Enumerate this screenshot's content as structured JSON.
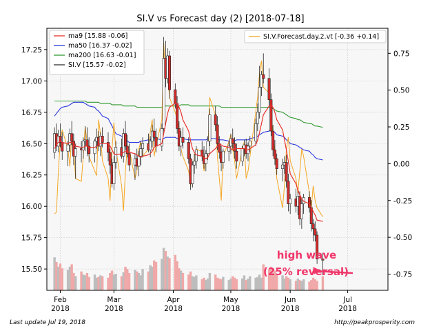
{
  "chart_data": {
    "type": "candlestick",
    "title": "SI.V vs Forecast day (2)  [2018-07-18]",
    "left_axis": {
      "ylim": [
        15.33,
        17.42
      ],
      "ticks": [
        "15.50",
        "15.75",
        "16.00",
        "16.25",
        "16.50",
        "16.75",
        "17.00",
        "17.25"
      ]
    },
    "right_axis": {
      "ylim": [
        -0.86,
        0.92
      ],
      "ticks": [
        "-0.75",
        "-0.50",
        "-0.25",
        "0.00",
        "0.25",
        "0.50",
        "0.75"
      ]
    },
    "x_axis": {
      "ticks": [
        {
          "line1": "Feb",
          "line2": "2018",
          "date": "2018-02-01"
        },
        {
          "line1": "Mar",
          "line2": "2018",
          "date": "2018-03-01"
        },
        {
          "line1": "Apr",
          "line2": "2018",
          "date": "2018-04-01"
        },
        {
          "line1": "May",
          "line2": "2018",
          "date": "2018-05-01"
        },
        {
          "line1": "Jun",
          "line2": "2018",
          "date": "2018-06-01"
        },
        {
          "line1": "Jul",
          "line2": "2018",
          "date": "2018-07-01"
        }
      ]
    },
    "grid": true,
    "legend_left": {
      "placement": "top-left",
      "entries": [
        {
          "label": "ma9 [15.88 -0.06]",
          "color": "#e8312b"
        },
        {
          "label": "ma50 [16.37 -0.02]",
          "color": "#2a38e0"
        },
        {
          "label": "ma200 [16.63 -0.01]",
          "color": "#2f9a2f"
        },
        {
          "label": "SI.V [15.57 -0.02]",
          "color": "#303030"
        }
      ]
    },
    "legend_right": {
      "placement": "top-right",
      "entries": [
        {
          "label": "SI.V.Forecast.day.2.vt [-0.36 +0.14]",
          "color": "#f5a623"
        }
      ]
    },
    "annotation": {
      "line1": "high wave",
      "line2": "(25% reversal)",
      "color": "#f0386b"
    },
    "series": {
      "candles": [
        [
          16.43,
          16.63,
          16.38,
          16.58
        ],
        [
          16.58,
          16.66,
          16.44,
          16.48
        ],
        [
          16.48,
          16.61,
          16.43,
          16.56
        ],
        [
          16.56,
          16.66,
          16.47,
          16.51
        ],
        [
          16.51,
          16.59,
          16.37,
          16.44
        ],
        [
          16.44,
          16.52,
          16.32,
          16.49
        ],
        [
          16.49,
          16.62,
          16.43,
          16.58
        ],
        [
          16.58,
          16.68,
          16.49,
          16.52
        ],
        [
          16.52,
          16.58,
          16.33,
          16.4
        ],
        [
          16.4,
          16.5,
          16.22,
          16.46
        ],
        [
          16.46,
          16.52,
          16.35,
          16.45
        ],
        [
          16.45,
          16.55,
          16.38,
          16.52
        ],
        [
          16.52,
          16.64,
          16.44,
          16.53
        ],
        [
          16.53,
          16.63,
          16.4,
          16.48
        ],
        [
          16.48,
          16.55,
          16.35,
          16.42
        ],
        [
          16.42,
          16.54,
          16.35,
          16.52
        ],
        [
          16.52,
          16.62,
          16.46,
          16.55
        ],
        [
          16.55,
          16.6,
          16.44,
          16.48
        ],
        [
          16.48,
          16.59,
          16.4,
          16.56
        ],
        [
          16.56,
          16.63,
          16.47,
          16.51
        ],
        [
          16.51,
          16.59,
          16.36,
          16.43
        ],
        [
          16.43,
          16.46,
          16.26,
          16.33
        ],
        [
          16.33,
          16.38,
          16.15,
          16.18
        ],
        [
          16.18,
          16.4,
          16.13,
          16.35
        ],
        [
          16.35,
          16.52,
          16.3,
          16.47
        ],
        [
          16.47,
          16.54,
          16.38,
          16.4
        ],
        [
          16.4,
          16.62,
          16.35,
          16.58
        ],
        [
          16.58,
          16.68,
          16.45,
          16.48
        ],
        [
          16.48,
          16.57,
          16.39,
          16.42
        ],
        [
          16.42,
          16.5,
          16.28,
          16.33
        ],
        [
          16.33,
          16.42,
          16.21,
          16.38
        ],
        [
          16.38,
          16.46,
          16.29,
          16.32
        ],
        [
          16.32,
          16.44,
          16.24,
          16.4
        ],
        [
          16.4,
          16.52,
          16.33,
          16.46
        ],
        [
          16.46,
          16.55,
          16.39,
          16.5
        ],
        [
          16.5,
          16.58,
          16.43,
          16.45
        ],
        [
          16.45,
          16.56,
          16.39,
          16.52
        ],
        [
          16.52,
          16.65,
          16.47,
          16.6
        ],
        [
          16.6,
          16.7,
          16.52,
          16.55
        ],
        [
          16.55,
          16.62,
          16.43,
          16.48
        ],
        [
          16.48,
          16.66,
          16.44,
          16.62
        ],
        [
          16.62,
          17.35,
          16.58,
          17.18
        ],
        [
          17.18,
          17.32,
          16.95,
          17.02
        ],
        [
          17.02,
          17.26,
          16.98,
          17.2
        ],
        [
          17.2,
          17.24,
          16.86,
          16.93
        ],
        [
          16.93,
          16.98,
          16.78,
          16.82
        ],
        [
          16.82,
          16.88,
          16.58,
          16.62
        ],
        [
          16.62,
          16.68,
          16.44,
          16.48
        ],
        [
          16.48,
          16.6,
          16.4,
          16.55
        ],
        [
          16.55,
          16.63,
          16.46,
          16.51
        ],
        [
          16.51,
          16.55,
          16.34,
          16.38
        ],
        [
          16.38,
          16.42,
          16.13,
          16.18
        ],
        [
          16.18,
          16.36,
          16.15,
          16.33
        ],
        [
          16.33,
          16.42,
          16.26,
          16.36
        ],
        [
          16.36,
          16.48,
          16.3,
          16.45
        ],
        [
          16.45,
          16.52,
          16.36,
          16.4
        ],
        [
          16.4,
          16.48,
          16.3,
          16.34
        ],
        [
          16.34,
          16.45,
          16.28,
          16.42
        ],
        [
          16.42,
          16.56,
          16.37,
          16.52
        ],
        [
          16.52,
          16.78,
          16.48,
          16.73
        ],
        [
          16.73,
          16.8,
          16.6,
          16.65
        ],
        [
          16.65,
          16.72,
          16.45,
          16.5
        ],
        [
          16.5,
          16.56,
          16.38,
          16.43
        ],
        [
          16.43,
          16.48,
          16.28,
          16.35
        ],
        [
          16.35,
          16.46,
          16.3,
          16.44
        ],
        [
          16.44,
          16.52,
          16.36,
          16.48
        ],
        [
          16.48,
          16.58,
          16.42,
          16.54
        ],
        [
          16.54,
          16.62,
          16.46,
          16.5
        ],
        [
          16.5,
          16.55,
          16.38,
          16.44
        ],
        [
          16.44,
          16.5,
          16.3,
          16.36
        ],
        [
          16.36,
          16.48,
          16.32,
          16.46
        ],
        [
          16.46,
          16.53,
          16.4,
          16.49
        ],
        [
          16.49,
          16.54,
          16.38,
          16.42
        ],
        [
          16.42,
          16.51,
          16.36,
          16.48
        ],
        [
          16.48,
          16.56,
          16.43,
          16.52
        ],
        [
          16.52,
          16.7,
          16.48,
          16.66
        ],
        [
          16.66,
          16.82,
          16.6,
          16.75
        ],
        [
          16.75,
          17.12,
          16.7,
          16.95
        ],
        [
          16.95,
          17.08,
          16.88,
          17.05
        ],
        [
          17.05,
          17.22,
          16.98,
          17.02
        ],
        [
          17.02,
          17.1,
          16.8,
          16.85
        ],
        [
          16.85,
          16.9,
          16.56,
          16.6
        ],
        [
          16.6,
          16.65,
          16.4,
          16.45
        ],
        [
          16.45,
          16.53,
          16.33,
          16.38
        ],
        [
          16.38,
          16.42,
          16.25,
          16.3
        ],
        [
          16.3,
          16.38,
          16.2,
          16.33
        ],
        [
          16.33,
          16.4,
          16.26,
          16.35
        ],
        [
          16.35,
          16.41,
          16.15,
          16.2
        ],
        [
          16.2,
          16.26,
          15.96,
          16.02
        ],
        [
          16.02,
          16.1,
          15.94,
          16.06
        ],
        [
          16.06,
          16.14,
          15.95,
          16.0
        ],
        [
          16.0,
          16.12,
          15.93,
          16.08
        ],
        [
          16.08,
          16.12,
          15.85,
          15.9
        ],
        [
          15.9,
          16.06,
          15.82,
          16.02
        ],
        [
          16.02,
          16.1,
          15.94,
          16.07
        ],
        [
          16.07,
          16.12,
          15.95,
          15.99
        ],
        [
          15.99,
          16.05,
          15.8,
          15.86
        ],
        [
          15.86,
          15.9,
          15.72,
          15.82
        ],
        [
          15.82,
          15.88,
          15.72,
          15.77
        ],
        [
          15.77,
          15.8,
          15.54,
          15.58
        ],
        [
          15.58,
          15.63,
          15.45,
          15.57
        ]
      ],
      "volume": [
        0.42,
        0.36,
        0.3,
        0.34,
        0.28,
        0.26,
        0.3,
        0.33,
        0.22,
        0.18,
        0.24,
        0.2,
        0.19,
        0.22,
        0.17,
        0.2,
        0.16,
        0.17,
        0.19,
        0.18,
        0.16,
        0.22,
        0.25,
        0.2,
        0.21,
        0.18,
        0.23,
        0.3,
        0.27,
        0.22,
        0.26,
        0.24,
        0.22,
        0.19,
        0.27,
        0.24,
        0.32,
        0.3,
        0.38,
        0.36,
        0.4,
        0.54,
        0.5,
        0.43,
        0.41,
        0.45,
        0.37,
        0.28,
        0.25,
        0.22,
        0.2,
        0.24,
        0.18,
        0.17,
        0.19,
        0.14,
        0.16,
        0.13,
        0.15,
        0.22,
        0.2,
        0.16,
        0.15,
        0.14,
        0.17,
        0.13,
        0.15,
        0.18,
        0.16,
        0.14,
        0.15,
        0.19,
        0.13,
        0.15,
        0.18,
        0.16,
        0.17,
        0.2,
        0.16,
        0.33,
        0.27,
        0.3,
        0.23,
        0.25,
        0.21,
        0.19,
        0.15,
        0.18,
        0.16,
        0.14,
        0.12,
        0.15,
        0.13,
        0.12,
        0.14,
        0.11,
        0.13,
        0.16,
        0.14,
        0.12,
        0.18
      ],
      "ma9": [
        16.46,
        16.49,
        16.51,
        16.52,
        16.51,
        16.5,
        16.51,
        16.51,
        16.5,
        16.48,
        16.47,
        16.47,
        16.48,
        16.48,
        16.47,
        16.47,
        16.48,
        16.49,
        16.5,
        16.5,
        16.5,
        16.48,
        16.45,
        16.42,
        16.41,
        16.42,
        16.43,
        16.44,
        16.44,
        16.43,
        16.42,
        16.41,
        16.4,
        16.39,
        16.4,
        16.41,
        16.42,
        16.44,
        16.47,
        16.48,
        16.5,
        16.58,
        16.66,
        16.74,
        16.79,
        16.82,
        16.82,
        16.79,
        16.75,
        16.69,
        16.6,
        16.52,
        16.46,
        16.43,
        16.41,
        16.4,
        16.39,
        16.38,
        16.39,
        16.42,
        16.46,
        16.48,
        16.5,
        16.49,
        16.48,
        16.47,
        16.46,
        16.45,
        16.46,
        16.46,
        16.46,
        16.46,
        16.45,
        16.45,
        16.46,
        16.49,
        16.53,
        16.59,
        16.66,
        16.73,
        16.8,
        16.81,
        16.79,
        16.75,
        16.69,
        16.61,
        16.53,
        16.45,
        16.36,
        16.26,
        16.18,
        16.13,
        16.09,
        16.06,
        16.04,
        16.02,
        15.99,
        15.96,
        15.93,
        15.89,
        15.88
      ],
      "ma50": [
        16.72,
        16.74,
        16.76,
        16.78,
        16.79,
        16.8,
        16.81,
        16.82,
        16.83,
        16.83,
        16.83,
        16.83,
        16.82,
        16.81,
        16.8,
        16.79,
        16.77,
        16.76,
        16.74,
        16.72,
        16.7,
        16.67,
        16.64,
        16.61,
        16.58,
        16.56,
        16.54,
        16.53,
        16.52,
        16.51,
        16.51,
        16.51,
        16.51,
        16.52,
        16.52,
        16.53,
        16.53,
        16.54,
        16.54,
        16.54,
        16.53,
        16.54,
        16.55,
        16.55,
        16.55,
        16.55,
        16.54,
        16.54,
        16.54,
        16.54,
        16.53,
        16.53,
        16.53,
        16.53,
        16.53,
        16.53,
        16.53,
        16.53,
        16.54,
        16.54,
        16.54,
        16.54,
        16.53,
        16.53,
        16.53,
        16.52,
        16.52,
        16.52,
        16.52,
        16.53,
        16.53,
        16.53,
        16.53,
        16.53,
        16.54,
        16.55,
        16.56,
        16.57,
        16.58,
        16.59,
        16.6,
        16.61,
        16.6,
        16.59,
        16.57,
        16.56,
        16.55,
        16.53,
        16.52,
        16.5,
        16.49,
        16.48,
        16.47,
        16.46,
        16.45,
        16.44,
        16.42,
        16.41,
        16.39,
        16.38,
        16.37
      ],
      "ma200": [
        16.84,
        16.84,
        16.84,
        16.84,
        16.84,
        16.84,
        16.84,
        16.84,
        16.84,
        16.84,
        16.84,
        16.84,
        16.84,
        16.83,
        16.83,
        16.83,
        16.83,
        16.83,
        16.82,
        16.82,
        16.82,
        16.82,
        16.81,
        16.81,
        16.81,
        16.81,
        16.8,
        16.8,
        16.8,
        16.8,
        16.8,
        16.79,
        16.79,
        16.79,
        16.79,
        16.79,
        16.79,
        16.79,
        16.79,
        16.79,
        16.79,
        16.8,
        16.8,
        16.8,
        16.8,
        16.8,
        16.8,
        16.8,
        16.81,
        16.81,
        16.81,
        16.8,
        16.8,
        16.8,
        16.8,
        16.8,
        16.8,
        16.8,
        16.8,
        16.8,
        16.8,
        16.8,
        16.8,
        16.79,
        16.79,
        16.79,
        16.79,
        16.79,
        16.79,
        16.79,
        16.79,
        16.79,
        16.79,
        16.79,
        16.79,
        16.79,
        16.79,
        16.79,
        16.79,
        16.79,
        16.79,
        16.78,
        16.78,
        16.77,
        16.76,
        16.75,
        16.74,
        16.73,
        16.72,
        16.71,
        16.7,
        16.69,
        16.69,
        16.68,
        16.67,
        16.66,
        16.66,
        16.65,
        16.64,
        16.64,
        16.63
      ],
      "forecast": [
        -0.34,
        -0.33,
        -0.05,
        0.15,
        0.23,
        0.1,
        -0.02,
        0.2,
        0.1,
        -0.1,
        -0.12,
        0.05,
        0.25,
        0.15,
        0.05,
        -0.05,
        -0.08,
        0.3,
        0.2,
        0.02,
        -0.1,
        -0.25,
        0.1,
        0.28,
        0.1,
        -0.15,
        -0.32,
        -0.05,
        0.12,
        0.1,
        -0.1,
        -0.05,
        0.1,
        0.15,
        0.05,
        0.1,
        0.22,
        0.3,
        0.05,
        0.12,
        0.3,
        0.82,
        0.58,
        0.62,
        0.45,
        0.35,
        0.3,
        0.25,
        0.1,
        0.05,
        -0.05,
        -0.15,
        -0.1,
        0.05,
        0.1,
        0.08,
        -0.05,
        0.02,
        0.05,
        0.45,
        0.33,
        0.05,
        -0.1,
        -0.25,
        0.05,
        0.15,
        0.2,
        0.1,
        0.02,
        -0.1,
        0.1,
        0.15,
        -0.1,
        -0.05,
        0.05,
        0.35,
        0.45,
        0.62,
        0.7,
        0.52,
        0.48,
        0.35,
        0.2,
        0.08,
        -0.1,
        -0.3,
        -0.15,
        0.1,
        0.18,
        0.02,
        -0.1,
        -0.2,
        -0.05,
        0.1,
        0.05,
        -0.2,
        -0.3,
        -0.15,
        -0.25,
        -0.3,
        -0.36
      ]
    }
  },
  "footer": {
    "left": "Last update Jul 19, 2018",
    "right": "http://peakprosperity.com"
  }
}
